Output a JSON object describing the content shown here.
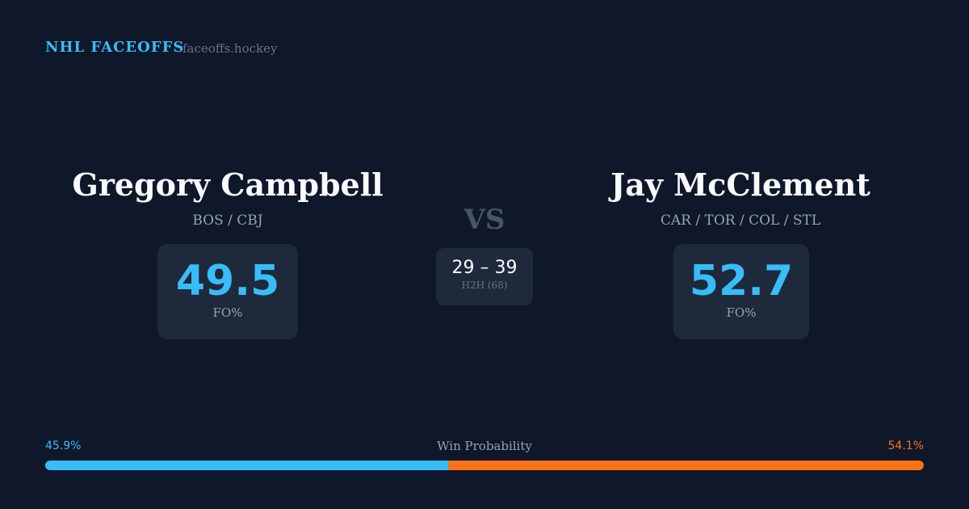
{
  "header": {
    "title": "NHL FACEOFFS",
    "site": "faceoffs.hockey"
  },
  "players": [
    {
      "name": "Gregory Campbell",
      "teams": "BOS / CBJ",
      "fo_pct": 49.5,
      "fo_label": "FO%"
    },
    {
      "name": "Jay McClement",
      "teams": "CAR / TOR / COL / STL",
      "fo_pct": 52.7,
      "fo_label": "FO%"
    }
  ],
  "vs": "VS",
  "h2h": {
    "score": "29 – 39",
    "label": "H2H (68)"
  },
  "win_probability": {
    "label": "Win Probability",
    "left": 45.9,
    "left_label": "45.9%",
    "left_color": "#38bdf8",
    "right": 54.1,
    "right_label": "54.1%",
    "right_color": "#f97316"
  }
}
